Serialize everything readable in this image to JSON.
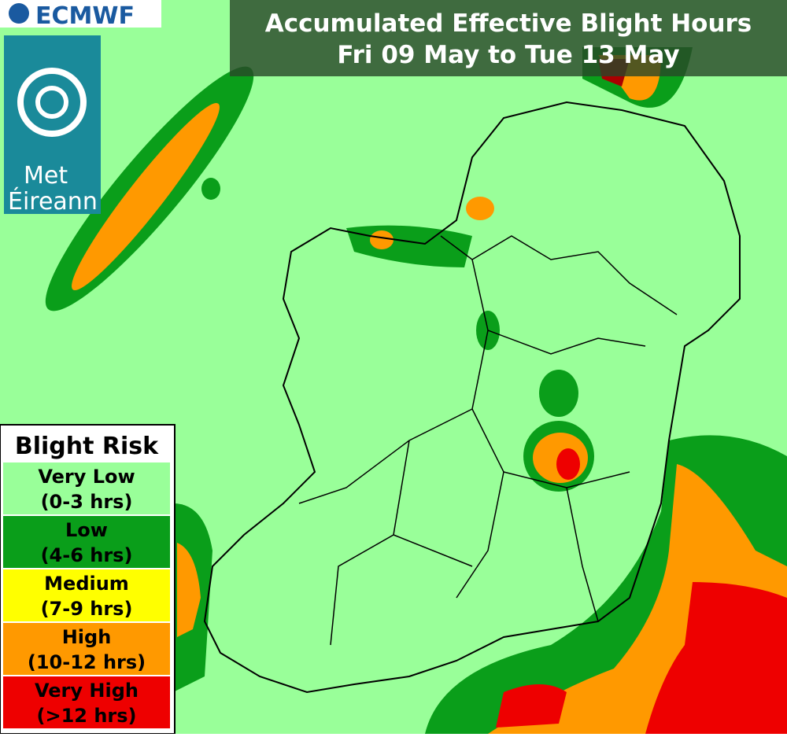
{
  "header": {
    "logo": "ECMWF",
    "title": [
      "Accumulated Effective Blight Hours",
      "Fri 09 May to Tue 13 May"
    ]
  },
  "branding": {
    "name": [
      "Met",
      "Éireann"
    ]
  },
  "legend": {
    "title": "Blight Risk",
    "items": [
      {
        "label": "Very Low",
        "range": "(0-3 hrs)",
        "color": "#99ff99"
      },
      {
        "label": "Low",
        "range": "(4-6 hrs)",
        "color": "#0a9e1a"
      },
      {
        "label": "Medium",
        "range": "(7-9 hrs)",
        "color": "#ffff00"
      },
      {
        "label": "High",
        "range": "(10-12 hrs)",
        "color": "#ff9900"
      },
      {
        "label": "Very High",
        "range": "(>12 hrs)",
        "color": "#ee0000"
      }
    ]
  }
}
